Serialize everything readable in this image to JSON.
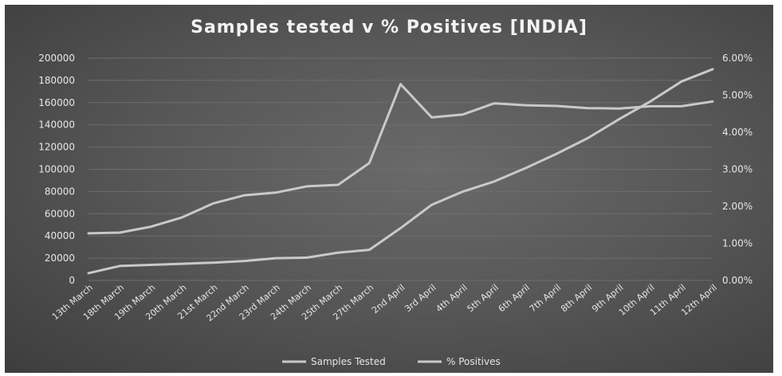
{
  "chart_data": {
    "type": "line",
    "title": "Samples tested v % Positives [INDIA]",
    "categories": [
      "13th March",
      "18th March",
      "19th March",
      "20th March",
      "21st March",
      "22nd March",
      "23rd March",
      "24th March",
      "25th March",
      "27th March",
      "2nd April",
      "3rd April",
      "4th April",
      "5th April",
      "6th April",
      "7th April",
      "8th April",
      "9th April",
      "10th April",
      "11th April",
      "12th April"
    ],
    "y_left": {
      "min": 0,
      "max": 200000,
      "step": 20000,
      "ticks": [
        "0",
        "20000",
        "40000",
        "60000",
        "80000",
        "100000",
        "120000",
        "140000",
        "160000",
        "180000",
        "200000"
      ]
    },
    "y_right": {
      "min": 0,
      "max": 6,
      "step": 1,
      "ticks": [
        "0.00%",
        "1.00%",
        "2.00%",
        "3.00%",
        "4.00%",
        "5.00%",
        "6.00%"
      ]
    },
    "series": [
      {
        "name": "Samples Tested",
        "axis": "left",
        "values": [
          6500,
          13000,
          14000,
          15000,
          16000,
          17500,
          20000,
          20500,
          25000,
          27500,
          47000,
          68000,
          80000,
          89000,
          101000,
          114000,
          128000,
          145000,
          161000,
          179000,
          190000
        ]
      },
      {
        "name": "% Positives",
        "axis": "right",
        "values": [
          1.27,
          1.29,
          1.45,
          1.7,
          2.08,
          2.3,
          2.37,
          2.54,
          2.58,
          3.17,
          5.3,
          4.4,
          4.48,
          4.78,
          4.73,
          4.71,
          4.65,
          4.64,
          4.7,
          4.7,
          4.83
        ]
      }
    ],
    "grid": true,
    "legend_position": "bottom",
    "colors": {
      "line": "#c9c9c9",
      "text": "#e6e6e6",
      "grid": "#6e6e6e"
    }
  }
}
